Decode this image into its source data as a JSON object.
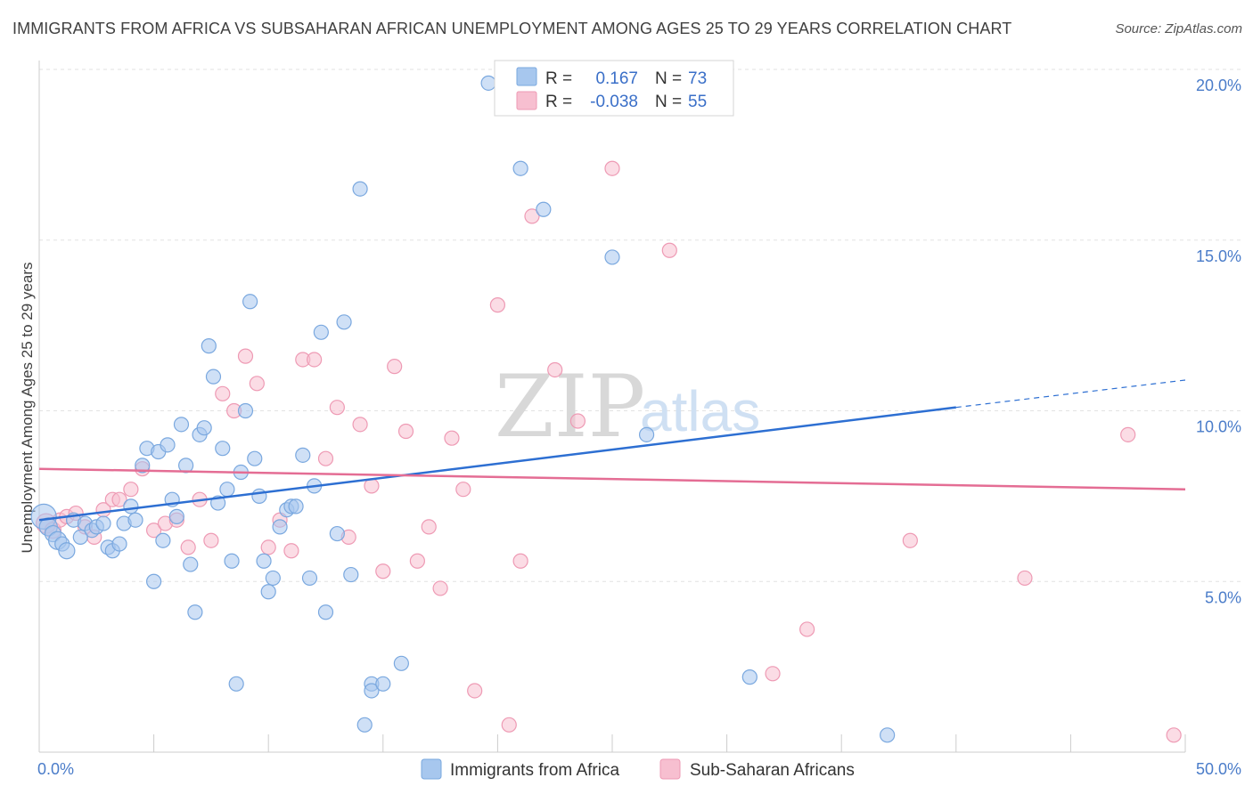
{
  "header": {
    "title": "IMMIGRANTS FROM AFRICA VS SUBSAHARAN AFRICAN UNEMPLOYMENT AMONG AGES 25 TO 29 YEARS CORRELATION CHART",
    "source": "Source: ZipAtlas.com"
  },
  "watermark": {
    "zip": "ZIP",
    "atlas": "atlas"
  },
  "chart_data": {
    "type": "scatter",
    "title": "IMMIGRANTS FROM AFRICA VS SUBSAHARAN AFRICAN UNEMPLOYMENT AMONG AGES 25 TO 29 YEARS CORRELATION CHART",
    "xlabel": "",
    "ylabel": "Unemployment Among Ages 25 to 29 years",
    "xlim": [
      0,
      50
    ],
    "ylim": [
      0,
      20
    ],
    "x_tick_labels": [
      "0.0%",
      "50.0%"
    ],
    "y_ticks": [
      5,
      10,
      15,
      20
    ],
    "y_tick_labels": [
      "5.0%",
      "10.0%",
      "15.0%",
      "20.0%"
    ],
    "grid": true,
    "legend_position": "top-center",
    "series": [
      {
        "name": "Immigrants from Africa",
        "color": "#a7c7ee",
        "edge_color": "#7aa8df",
        "line_color": "#2d6fd2",
        "R": "0.167",
        "N": "73",
        "trend": {
          "x0": 0,
          "y0": 6.8,
          "x1": 40,
          "y1": 10.1,
          "dashed_to_x": 50,
          "dashed_to_y": 10.9
        },
        "points": [
          [
            0.2,
            6.9,
            14
          ],
          [
            0.4,
            6.6,
            10
          ],
          [
            0.6,
            6.4,
            9
          ],
          [
            0.8,
            6.2,
            10
          ],
          [
            1.0,
            6.1,
            8
          ],
          [
            1.2,
            5.9,
            9
          ],
          [
            1.5,
            6.8,
            8
          ],
          [
            1.8,
            6.3,
            8
          ],
          [
            2.0,
            6.7,
            8
          ],
          [
            2.3,
            6.5,
            8
          ],
          [
            2.5,
            6.6,
            8
          ],
          [
            2.8,
            6.7,
            8
          ],
          [
            3.0,
            6.0,
            8
          ],
          [
            3.2,
            5.9,
            8
          ],
          [
            3.5,
            6.1,
            8
          ],
          [
            3.7,
            6.7,
            8
          ],
          [
            4.0,
            7.2,
            8
          ],
          [
            4.2,
            6.8,
            8
          ],
          [
            4.5,
            8.4,
            8
          ],
          [
            4.7,
            8.9,
            8
          ],
          [
            5.0,
            5.0,
            8
          ],
          [
            5.2,
            8.8,
            8
          ],
          [
            5.4,
            6.2,
            8
          ],
          [
            5.6,
            9.0,
            8
          ],
          [
            5.8,
            7.4,
            8
          ],
          [
            6.0,
            6.9,
            8
          ],
          [
            6.2,
            9.6,
            8
          ],
          [
            6.4,
            8.4,
            8
          ],
          [
            6.6,
            5.5,
            8
          ],
          [
            6.8,
            4.1,
            8
          ],
          [
            7.0,
            9.3,
            8
          ],
          [
            7.2,
            9.5,
            8
          ],
          [
            7.4,
            11.9,
            8
          ],
          [
            7.6,
            11.0,
            8
          ],
          [
            7.8,
            7.3,
            8
          ],
          [
            8.0,
            8.9,
            8
          ],
          [
            8.2,
            7.7,
            8
          ],
          [
            8.4,
            5.6,
            8
          ],
          [
            8.6,
            2.0,
            8
          ],
          [
            8.8,
            8.2,
            8
          ],
          [
            9.0,
            10.0,
            8
          ],
          [
            9.2,
            13.2,
            8
          ],
          [
            9.4,
            8.6,
            8
          ],
          [
            9.6,
            7.5,
            8
          ],
          [
            9.8,
            5.6,
            8
          ],
          [
            10.0,
            4.7,
            8
          ],
          [
            10.2,
            5.1,
            8
          ],
          [
            10.5,
            6.6,
            8
          ],
          [
            10.8,
            7.1,
            8
          ],
          [
            11.0,
            7.2,
            8
          ],
          [
            11.2,
            7.2,
            8
          ],
          [
            11.5,
            8.7,
            8
          ],
          [
            11.8,
            5.1,
            8
          ],
          [
            12.0,
            7.8,
            8
          ],
          [
            12.3,
            12.3,
            8
          ],
          [
            12.5,
            4.1,
            8
          ],
          [
            13.0,
            6.4,
            8
          ],
          [
            13.3,
            12.6,
            8
          ],
          [
            13.6,
            5.2,
            8
          ],
          [
            14.0,
            16.5,
            8
          ],
          [
            14.2,
            0.8,
            8
          ],
          [
            14.5,
            2.0,
            8
          ],
          [
            14.5,
            1.8,
            8
          ],
          [
            15.0,
            2.0,
            8
          ],
          [
            15.8,
            2.6,
            8
          ],
          [
            19.6,
            19.6,
            8
          ],
          [
            21.0,
            17.1,
            8
          ],
          [
            22.0,
            15.9,
            8
          ],
          [
            23.0,
            19.4,
            8
          ],
          [
            25.0,
            14.5,
            8
          ],
          [
            26.5,
            9.3,
            8
          ],
          [
            31.0,
            2.2,
            8
          ],
          [
            37.0,
            0.5,
            8
          ]
        ]
      },
      {
        "name": "Sub-Saharan Africans",
        "color": "#f7bfd0",
        "edge_color": "#ee9ab4",
        "line_color": "#e46d94",
        "R": "-0.038",
        "N": "55",
        "trend": {
          "x0": 0,
          "y0": 8.3,
          "x1": 50,
          "y1": 7.7
        },
        "points": [
          [
            0.3,
            6.7,
            11
          ],
          [
            0.6,
            6.5,
            9
          ],
          [
            0.9,
            6.8,
            8
          ],
          [
            1.2,
            6.9,
            8
          ],
          [
            1.6,
            7.0,
            8
          ],
          [
            2.0,
            6.6,
            8
          ],
          [
            2.4,
            6.3,
            8
          ],
          [
            2.8,
            7.1,
            8
          ],
          [
            3.2,
            7.4,
            8
          ],
          [
            3.5,
            7.4,
            8
          ],
          [
            4.0,
            7.7,
            8
          ],
          [
            4.5,
            8.3,
            8
          ],
          [
            5.0,
            6.5,
            8
          ],
          [
            5.5,
            6.7,
            8
          ],
          [
            6.0,
            6.8,
            8
          ],
          [
            6.5,
            6.0,
            8
          ],
          [
            7.0,
            7.4,
            8
          ],
          [
            7.5,
            6.2,
            8
          ],
          [
            8.0,
            10.5,
            8
          ],
          [
            8.5,
            10.0,
            8
          ],
          [
            9.0,
            11.6,
            8
          ],
          [
            9.5,
            10.8,
            8
          ],
          [
            10.0,
            6.0,
            8
          ],
          [
            10.5,
            6.8,
            8
          ],
          [
            11.0,
            5.9,
            8
          ],
          [
            11.5,
            11.5,
            8
          ],
          [
            12.0,
            11.5,
            8
          ],
          [
            12.5,
            8.6,
            8
          ],
          [
            13.0,
            10.1,
            8
          ],
          [
            13.5,
            6.3,
            8
          ],
          [
            14.0,
            9.6,
            8
          ],
          [
            14.5,
            7.8,
            8
          ],
          [
            15.0,
            5.3,
            8
          ],
          [
            15.5,
            11.3,
            8
          ],
          [
            16.0,
            9.4,
            8
          ],
          [
            16.5,
            5.6,
            8
          ],
          [
            17.0,
            6.6,
            8
          ],
          [
            17.5,
            4.8,
            8
          ],
          [
            18.0,
            9.2,
            8
          ],
          [
            18.5,
            7.7,
            8
          ],
          [
            19.0,
            1.8,
            8
          ],
          [
            20.0,
            13.1,
            8
          ],
          [
            20.5,
            0.8,
            8
          ],
          [
            21.0,
            5.6,
            8
          ],
          [
            21.5,
            15.7,
            8
          ],
          [
            22.5,
            11.2,
            8
          ],
          [
            23.5,
            9.7,
            8
          ],
          [
            25.0,
            17.1,
            8
          ],
          [
            27.5,
            14.7,
            8
          ],
          [
            32.0,
            2.3,
            8
          ],
          [
            33.5,
            3.6,
            8
          ],
          [
            38.0,
            6.2,
            8
          ],
          [
            43.0,
            5.1,
            8
          ],
          [
            47.5,
            9.3,
            8
          ],
          [
            49.5,
            0.5,
            8
          ]
        ]
      }
    ]
  }
}
